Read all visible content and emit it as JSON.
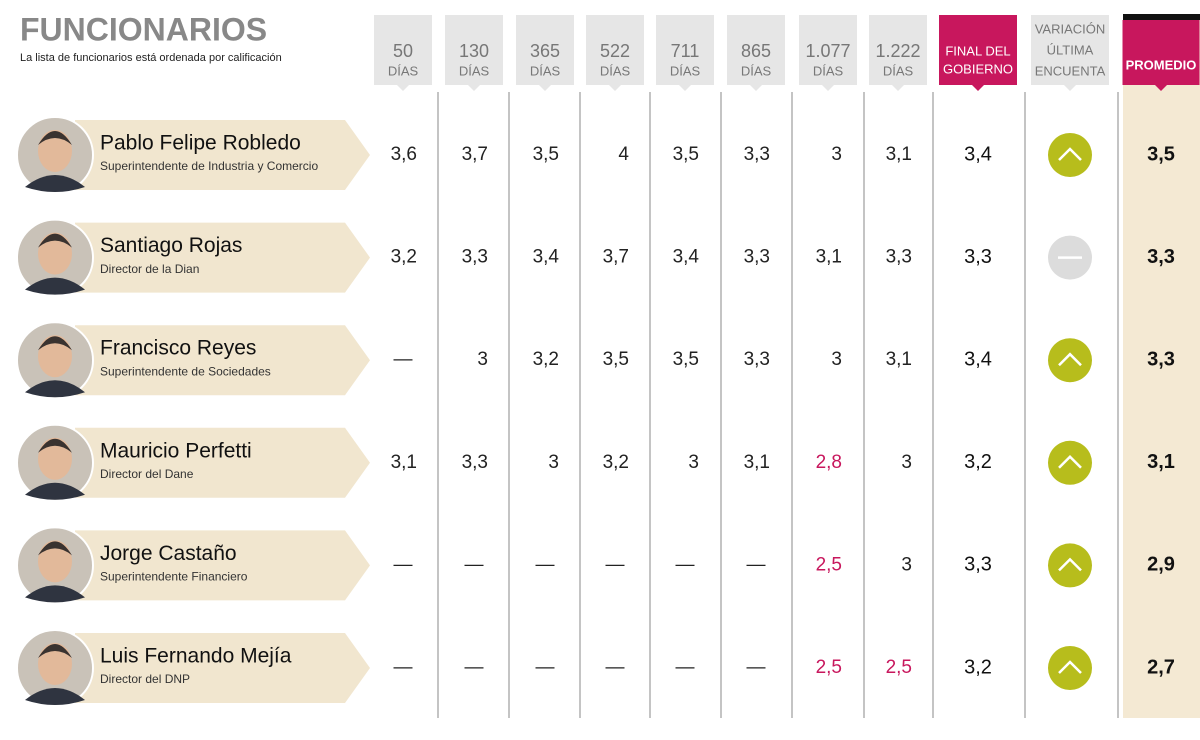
{
  "header": {
    "title": "FUNCIONARIOS",
    "subtitle": "La lista de funcionarios está ordenada por calificación"
  },
  "columns": [
    [
      "50",
      "DÍAS"
    ],
    [
      "130",
      "DÍAS"
    ],
    [
      "365",
      "DÍAS"
    ],
    [
      "522",
      "DÍAS"
    ],
    [
      "711",
      "DÍAS"
    ],
    [
      "865",
      "DÍAS"
    ],
    [
      "1.077",
      "DÍAS"
    ],
    [
      "1.222",
      "DÍAS"
    ]
  ],
  "final_column": [
    "FINAL DEL",
    "GOBIERNO"
  ],
  "variation_column": [
    "VARIACIÓN",
    "ÚLTIMA",
    "ENCUENTA"
  ],
  "average_column": [
    "PROMEDIO"
  ],
  "highlight_color": "#c8175d",
  "rows": [
    {
      "name": "Pablo Felipe Robledo",
      "role": "Superintendente de Industria y Comercio",
      "values": [
        "3,6",
        "3,7",
        "3,5",
        "4",
        "3,5",
        "3,3",
        "3",
        "3,1"
      ],
      "final": "3,4",
      "trend": "up",
      "average": "3,5"
    },
    {
      "name": "Santiago Rojas",
      "role": "Director de la Dian",
      "values": [
        "3,2",
        "3,3",
        "3,4",
        "3,7",
        "3,4",
        "3,3",
        "3,1",
        "3,3"
      ],
      "final": "3,3",
      "trend": "flat",
      "average": "3,3"
    },
    {
      "name": "Francisco Reyes",
      "role": "Superintendente de Sociedades",
      "values": [
        "—",
        "3",
        "3,2",
        "3,5",
        "3,5",
        "3,3",
        "3",
        "3,1"
      ],
      "final": "3,4",
      "trend": "up",
      "average": "3,3"
    },
    {
      "name": "Mauricio Perfetti",
      "role": "Director del Dane",
      "values": [
        "3,1",
        "3,3",
        "3",
        "3,2",
        "3",
        "3,1",
        {
          "text": "2,8",
          "highlight": true
        },
        "3"
      ],
      "final": "3,2",
      "trend": "up",
      "average": "3,1"
    },
    {
      "name": "Jorge Castaño",
      "role": "Superintendente Financiero",
      "values": [
        "—",
        "—",
        "—",
        "—",
        "—",
        "—",
        {
          "text": "2,5",
          "highlight": true
        },
        "3"
      ],
      "final": "3,3",
      "trend": "up",
      "average": "2,9"
    },
    {
      "name": "Luis Fernando Mejía",
      "role": "Director del DNP",
      "values": [
        "—",
        "—",
        "—",
        "—",
        "—",
        "—",
        {
          "text": "2,5",
          "highlight": true
        },
        {
          "text": "2,5",
          "highlight": true
        }
      ],
      "final": "3,2",
      "trend": "up",
      "average": "2,7"
    }
  ]
}
